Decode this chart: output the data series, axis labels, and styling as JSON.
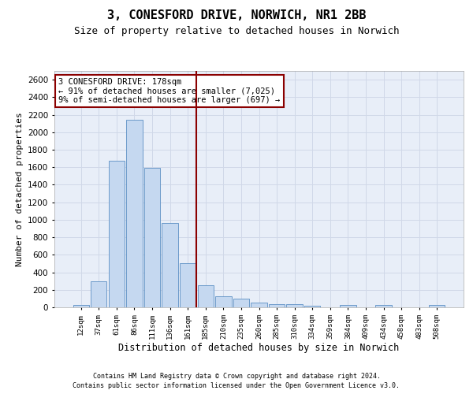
{
  "title1": "3, CONESFORD DRIVE, NORWICH, NR1 2BB",
  "title2": "Size of property relative to detached houses in Norwich",
  "xlabel": "Distribution of detached houses by size in Norwich",
  "ylabel": "Number of detached properties",
  "footnote1": "Contains HM Land Registry data © Crown copyright and database right 2024.",
  "footnote2": "Contains public sector information licensed under the Open Government Licence v3.0.",
  "bar_labels": [
    "12sqm",
    "37sqm",
    "61sqm",
    "86sqm",
    "111sqm",
    "136sqm",
    "161sqm",
    "185sqm",
    "210sqm",
    "235sqm",
    "260sqm",
    "285sqm",
    "310sqm",
    "334sqm",
    "359sqm",
    "384sqm",
    "409sqm",
    "434sqm",
    "458sqm",
    "483sqm",
    "508sqm"
  ],
  "bar_values": [
    25,
    300,
    1670,
    2140,
    1590,
    960,
    500,
    250,
    125,
    100,
    50,
    40,
    35,
    20,
    0,
    25,
    0,
    25,
    0,
    0,
    25
  ],
  "bar_color": "#c5d8f0",
  "bar_edge_color": "#5b8fc4",
  "vline_index": 7,
  "annotation_title": "3 CONESFORD DRIVE: 178sqm",
  "annotation_line1": "← 91% of detached houses are smaller (7,025)",
  "annotation_line2": "9% of semi-detached houses are larger (697) →",
  "vline_color": "#8b0000",
  "annotation_box_edge": "#8b0000",
  "ylim": [
    0,
    2700
  ],
  "yticks": [
    0,
    200,
    400,
    600,
    800,
    1000,
    1200,
    1400,
    1600,
    1800,
    2000,
    2200,
    2400,
    2600
  ],
  "grid_color": "#d0d8e8",
  "bg_color": "#e8eef8",
  "title1_fontsize": 11,
  "title2_fontsize": 9,
  "ylabel_fontsize": 8,
  "xlabel_fontsize": 8.5,
  "xtick_fontsize": 6.5,
  "ytick_fontsize": 7.5,
  "annotation_fontsize": 7.5,
  "footnote_fontsize": 6
}
